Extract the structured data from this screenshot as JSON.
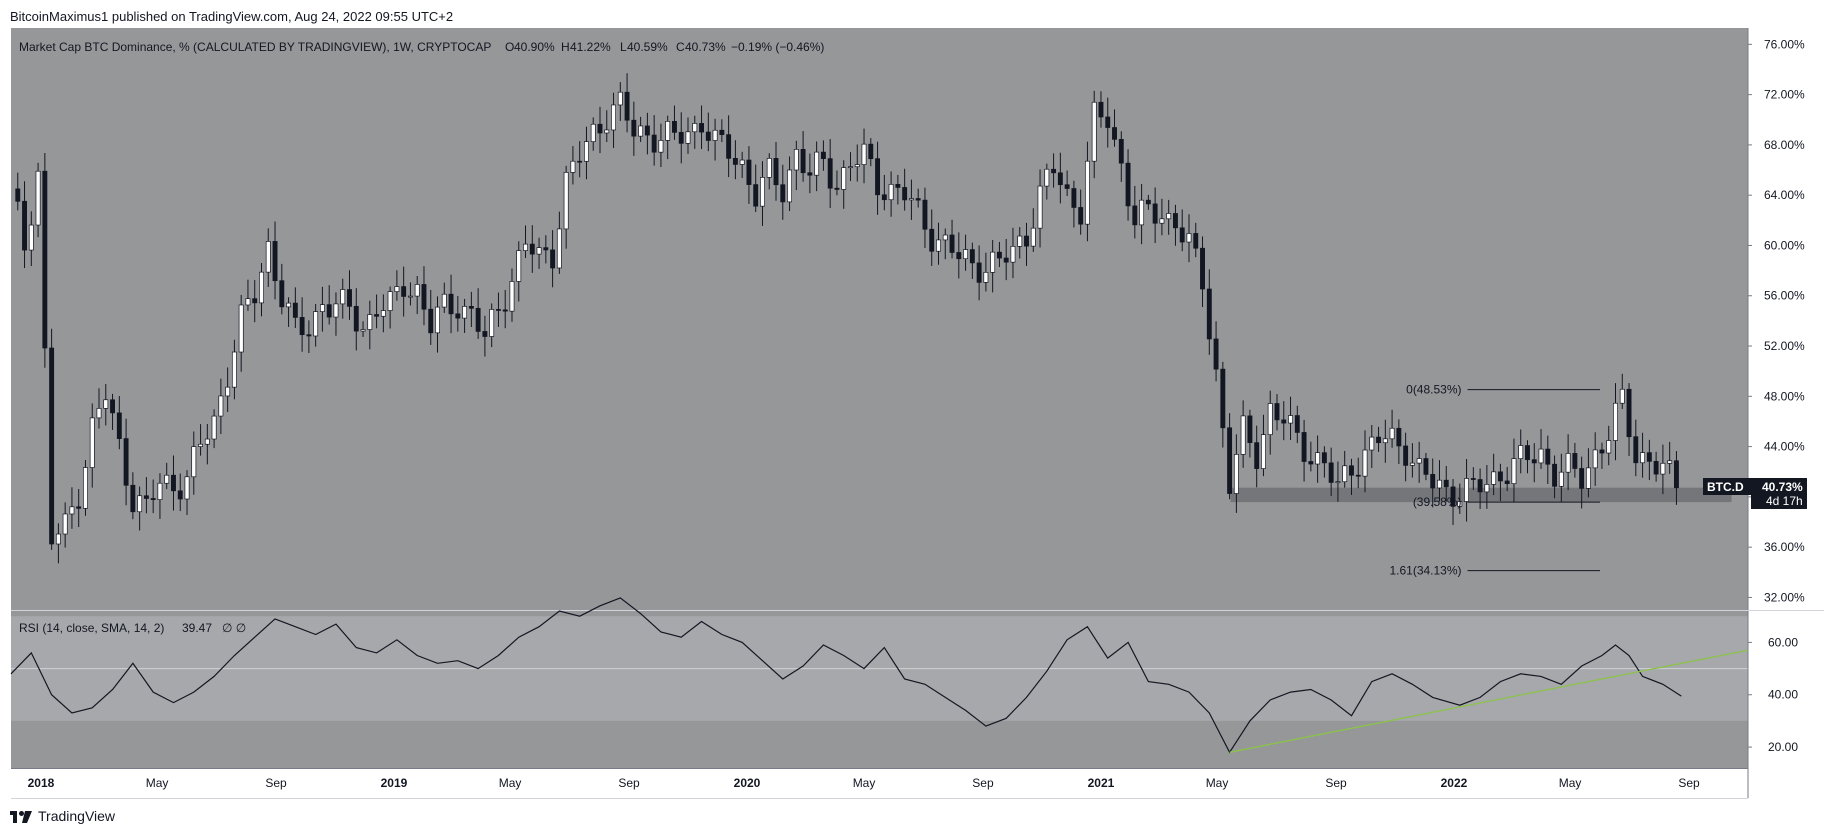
{
  "header": {
    "text": "BitcoinMaximus1 published on TradingView.com, Aug 24, 2022 09:55 UTC+2"
  },
  "footer": {
    "brand": "TradingView"
  },
  "colors": {
    "pane_bg": "#969799",
    "up_candle": "#ffffff",
    "down_candle": "#131722",
    "rsi_band": "#a7a8ab",
    "trendline": "#8bc34a",
    "support_zone": "#6e7074"
  },
  "chart_data": {
    "type": "candlestick",
    "title": "Market Cap BTC Dominance, % (CALCULATED BY TRADINGVIEW), 1W, CRYPTOCAP",
    "ohlc_readout": {
      "O": "40.90%",
      "H": "41.22%",
      "L": "40.59%",
      "C": "40.73%",
      "change": "−0.19% (−0.46%)"
    },
    "price_ticks": [
      "76.00%",
      "72.00%",
      "68.00%",
      "64.00%",
      "60.00%",
      "56.00%",
      "52.00%",
      "48.00%",
      "44.00%",
      "40.00%",
      "36.00%",
      "32.00%"
    ],
    "ylim": [
      31,
      77.3
    ],
    "x_ticks": [
      "2018",
      "May",
      "Sep",
      "2019",
      "May",
      "Sep",
      "2020",
      "May",
      "Sep",
      "2021",
      "May",
      "Sep",
      "2022",
      "May",
      "Sep"
    ],
    "x_tick_dates": [
      "2018-01-01",
      "2018-05-01",
      "2018-09-01",
      "2019-01-01",
      "2019-05-01",
      "2019-09-01",
      "2020-01-01",
      "2020-05-01",
      "2020-09-01",
      "2021-01-01",
      "2021-05-01",
      "2021-09-01",
      "2022-01-01",
      "2022-05-01",
      "2022-09-01"
    ],
    "x_range": [
      "2017-12-01",
      "2022-11-01"
    ],
    "close_series": {
      "dates": [
        "2017-12-01",
        "2017-12-15",
        "2017-12-29",
        "2018-01-12",
        "2018-01-26",
        "2018-02-09",
        "2018-02-23",
        "2018-03-09",
        "2018-03-23",
        "2018-04-06",
        "2018-04-20",
        "2018-05-04",
        "2018-05-18",
        "2018-06-01",
        "2018-06-15",
        "2018-06-29",
        "2018-07-13",
        "2018-07-27",
        "2018-08-10",
        "2018-08-24",
        "2018-09-07",
        "2018-09-21",
        "2018-10-05",
        "2018-10-19",
        "2018-11-02",
        "2018-11-16",
        "2018-11-30",
        "2018-12-14",
        "2018-12-28",
        "2019-01-11",
        "2019-01-25",
        "2019-02-08",
        "2019-02-22",
        "2019-03-08",
        "2019-03-22",
        "2019-04-05",
        "2019-04-19",
        "2019-05-03",
        "2019-05-17",
        "2019-05-31",
        "2019-06-14",
        "2019-06-28",
        "2019-07-12",
        "2019-07-26",
        "2019-08-09",
        "2019-08-23",
        "2019-09-06",
        "2019-09-20",
        "2019-10-04",
        "2019-10-18",
        "2019-11-01",
        "2019-11-15",
        "2019-11-29",
        "2019-12-13",
        "2019-12-27",
        "2020-01-10",
        "2020-01-24",
        "2020-02-07",
        "2020-02-21",
        "2020-03-06",
        "2020-03-20",
        "2020-04-03",
        "2020-04-17",
        "2020-05-01",
        "2020-05-15",
        "2020-05-29",
        "2020-06-12",
        "2020-06-26",
        "2020-07-10",
        "2020-07-24",
        "2020-08-07",
        "2020-08-21",
        "2020-09-04",
        "2020-09-18",
        "2020-10-02",
        "2020-10-16",
        "2020-10-30",
        "2020-11-13",
        "2020-11-27",
        "2020-12-11",
        "2020-12-25",
        "2021-01-08",
        "2021-01-22",
        "2021-02-05",
        "2021-02-19",
        "2021-03-05",
        "2021-03-19",
        "2021-04-02",
        "2021-04-16",
        "2021-04-30",
        "2021-05-14",
        "2021-05-28",
        "2021-06-11",
        "2021-06-25",
        "2021-07-09",
        "2021-07-23",
        "2021-08-06",
        "2021-08-20",
        "2021-09-03",
        "2021-09-17",
        "2021-10-01",
        "2021-10-15",
        "2021-10-29",
        "2021-11-12",
        "2021-11-26",
        "2021-12-10",
        "2021-12-24",
        "2022-01-07",
        "2022-01-21",
        "2022-02-04",
        "2022-02-18",
        "2022-03-04",
        "2022-03-18",
        "2022-04-01",
        "2022-04-15",
        "2022-04-29",
        "2022-05-13",
        "2022-05-27",
        "2022-06-10",
        "2022-06-24",
        "2022-07-08",
        "2022-07-22",
        "2022-08-05",
        "2022-08-19",
        "2022-08-24"
      ],
      "close": [
        64.5,
        60,
        66,
        36.5,
        37.5,
        40.5,
        45.5,
        48,
        44,
        40,
        39,
        41,
        41,
        41.5,
        44,
        46,
        50,
        54,
        56,
        60,
        56,
        53,
        53.5,
        55.5,
        55,
        55,
        53.5,
        55,
        55,
        57,
        56.5,
        53.5,
        55,
        55.5,
        54.5,
        52.5,
        55,
        57.5,
        60,
        59,
        59.5,
        65,
        67,
        69,
        70.5,
        71,
        69,
        69,
        68.5,
        68.5,
        69,
        70,
        68,
        67.5,
        66.5,
        64,
        65.5,
        64.5,
        67.5,
        65.5,
        66.5,
        65,
        66.5,
        67,
        65,
        64.5,
        64,
        62.5,
        61,
        60,
        59,
        58.5,
        58.5,
        58.5,
        59.5,
        61,
        64,
        66,
        64,
        63,
        70,
        70,
        66.5,
        62,
        62.5,
        62.5,
        62,
        60,
        57,
        50,
        41,
        45,
        43.5,
        47,
        46,
        44.5,
        43.5,
        42.5,
        40.5,
        42.5,
        43.5,
        44.5,
        44.5,
        44,
        42,
        41,
        40.5,
        40.5,
        40.5,
        41,
        42,
        42.5,
        43,
        43.5,
        42,
        42,
        41.5,
        43.5,
        45,
        47.5,
        43.5,
        43,
        42,
        41,
        40.73
      ]
    },
    "fib_levels": [
      {
        "label": "0(48.53%)",
        "value": 48.53
      },
      {
        "label": "(39.58%)",
        "value": 39.58
      },
      {
        "label": "1.61(34.13%)",
        "value": 34.13
      }
    ],
    "support_zone": {
      "low": 39.58,
      "high": 40.73,
      "from": "2021-05-15",
      "to": "2022-10-15"
    },
    "last_label": {
      "symbol": "BTC.D",
      "value": "40.73%",
      "countdown": "4d 17h"
    },
    "rsi": {
      "title": "RSI (14, close, SMA, 14, 2)",
      "value": "39.47",
      "extra": "∅  ∅",
      "ticks": [
        "60.00",
        "40.00",
        "20.00"
      ],
      "ylim": [
        12,
        72
      ],
      "band": [
        30,
        70
      ],
      "mid": 50,
      "points": [
        [
          "2017-12-01",
          48
        ],
        [
          "2017-12-22",
          56
        ],
        [
          "2018-01-12",
          40
        ],
        [
          "2018-02-02",
          33
        ],
        [
          "2018-02-23",
          35
        ],
        [
          "2018-03-16",
          42
        ],
        [
          "2018-04-06",
          52
        ],
        [
          "2018-04-27",
          41
        ],
        [
          "2018-05-18",
          37
        ],
        [
          "2018-06-08",
          41
        ],
        [
          "2018-06-29",
          47
        ],
        [
          "2018-07-20",
          55
        ],
        [
          "2018-08-10",
          62
        ],
        [
          "2018-08-31",
          69
        ],
        [
          "2018-09-21",
          66
        ],
        [
          "2018-10-12",
          63
        ],
        [
          "2018-11-02",
          67
        ],
        [
          "2018-11-23",
          58
        ],
        [
          "2018-12-14",
          56
        ],
        [
          "2019-01-04",
          61
        ],
        [
          "2019-01-25",
          55
        ],
        [
          "2019-02-15",
          52
        ],
        [
          "2019-03-08",
          53
        ],
        [
          "2019-03-29",
          50
        ],
        [
          "2019-04-19",
          55
        ],
        [
          "2019-05-10",
          62
        ],
        [
          "2019-05-31",
          66
        ],
        [
          "2019-06-21",
          72
        ],
        [
          "2019-07-12",
          70
        ],
        [
          "2019-08-02",
          74
        ],
        [
          "2019-08-23",
          77
        ],
        [
          "2019-09-13",
          71
        ],
        [
          "2019-10-04",
          64
        ],
        [
          "2019-10-25",
          62
        ],
        [
          "2019-11-15",
          68
        ],
        [
          "2019-12-06",
          63
        ],
        [
          "2019-12-27",
          60
        ],
        [
          "2020-01-17",
          53
        ],
        [
          "2020-02-07",
          46
        ],
        [
          "2020-02-28",
          51
        ],
        [
          "2020-03-20",
          59
        ],
        [
          "2020-04-10",
          55
        ],
        [
          "2020-05-01",
          50
        ],
        [
          "2020-05-22",
          58
        ],
        [
          "2020-06-12",
          46
        ],
        [
          "2020-07-03",
          44
        ],
        [
          "2020-07-24",
          39
        ],
        [
          "2020-08-14",
          34
        ],
        [
          "2020-09-04",
          28
        ],
        [
          "2020-09-25",
          31
        ],
        [
          "2020-10-16",
          39
        ],
        [
          "2020-11-06",
          49
        ],
        [
          "2020-11-27",
          61
        ],
        [
          "2020-12-18",
          66
        ],
        [
          "2021-01-08",
          54
        ],
        [
          "2021-01-29",
          60
        ],
        [
          "2021-02-19",
          45
        ],
        [
          "2021-03-12",
          44
        ],
        [
          "2021-04-02",
          41
        ],
        [
          "2021-04-23",
          33
        ],
        [
          "2021-05-14",
          18
        ],
        [
          "2021-06-04",
          30
        ],
        [
          "2021-06-25",
          38
        ],
        [
          "2021-07-16",
          41
        ],
        [
          "2021-08-06",
          42
        ],
        [
          "2021-08-27",
          38
        ],
        [
          "2021-09-17",
          32
        ],
        [
          "2021-10-08",
          45
        ],
        [
          "2021-10-29",
          48
        ],
        [
          "2021-11-19",
          44
        ],
        [
          "2021-12-10",
          39
        ],
        [
          "2022-01-07",
          36
        ],
        [
          "2022-01-28",
          39
        ],
        [
          "2022-02-18",
          45
        ],
        [
          "2022-03-11",
          48
        ],
        [
          "2022-04-01",
          47
        ],
        [
          "2022-04-22",
          44
        ],
        [
          "2022-05-13",
          51
        ],
        [
          "2022-06-03",
          55
        ],
        [
          "2022-06-17",
          59
        ],
        [
          "2022-07-01",
          55
        ],
        [
          "2022-07-15",
          47
        ],
        [
          "2022-08-05",
          44
        ],
        [
          "2022-08-24",
          39.47
        ]
      ]
    },
    "trendline": {
      "from": [
        "2021-05-14",
        18
      ],
      "to": [
        "2022-11-01",
        57
      ]
    }
  }
}
